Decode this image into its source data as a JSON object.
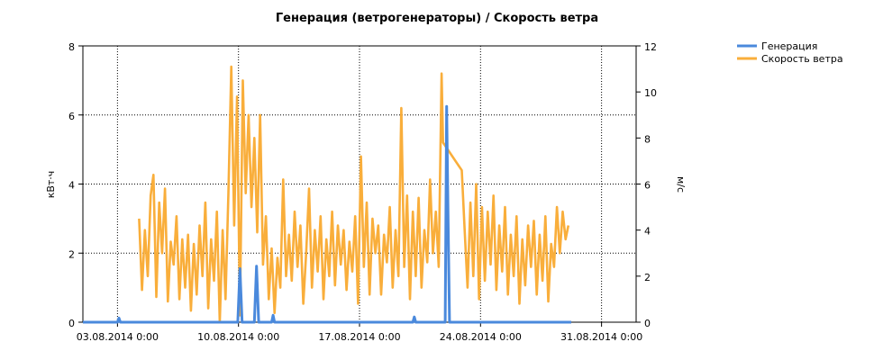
{
  "chart_data": {
    "type": "line",
    "title": "Генерация (ветрогенераторы) / Скорость ветра",
    "ylabel_left": "кВт·ч",
    "ylabel_right": "м/с",
    "ylim_left": [
      0,
      8
    ],
    "ylim_right": [
      0,
      12
    ],
    "yticks_left": [
      "0",
      "2",
      "4",
      "6",
      "8"
    ],
    "yticks_right": [
      "0",
      "2",
      "4",
      "6",
      "8",
      "10",
      "12"
    ],
    "x_range": [
      "2014-08-01T00:00",
      "2014-09-02T00:00"
    ],
    "x_ticks": [
      {
        "date": "2014-08-03T00:00",
        "label": "03.08.2014 0:00"
      },
      {
        "date": "2014-08-10T00:00",
        "label": "10.08.2014 0:00"
      },
      {
        "date": "2014-08-17T00:00",
        "label": "17.08.2014 0:00"
      },
      {
        "date": "2014-08-24T00:00",
        "label": "24.08.2014 0:00"
      },
      {
        "date": "2014-08-31T00:00",
        "label": "31.08.2014 0:00"
      }
    ],
    "grid": true,
    "legend_position": "top-right",
    "series": [
      {
        "name": "Генерация",
        "axis": "left",
        "color": "#4a89dc",
        "points": [
          [
            "2014-08-01T00:00",
            0
          ],
          [
            "2014-08-03T00:00",
            0
          ],
          [
            "2014-08-03T02:00",
            0.12
          ],
          [
            "2014-08-03T04:00",
            0
          ],
          [
            "2014-08-09T23:00",
            0
          ],
          [
            "2014-08-10T02:00",
            1.55
          ],
          [
            "2014-08-10T05:00",
            0
          ],
          [
            "2014-08-10T22:00",
            0
          ],
          [
            "2014-08-11T01:00",
            1.62
          ],
          [
            "2014-08-11T04:00",
            0
          ],
          [
            "2014-08-11T22:00",
            0
          ],
          [
            "2014-08-12T00:00",
            0.2
          ],
          [
            "2014-08-12T02:00",
            0
          ],
          [
            "2014-08-20T02:00",
            0
          ],
          [
            "2014-08-20T04:00",
            0.15
          ],
          [
            "2014-08-20T06:00",
            0
          ],
          [
            "2014-08-21T23:00",
            0
          ],
          [
            "2014-08-22T01:00",
            6.25
          ],
          [
            "2014-08-22T03:00",
            3.0
          ],
          [
            "2014-08-22T05:00",
            0
          ],
          [
            "2014-08-29T06:00",
            0
          ]
        ]
      },
      {
        "name": "Скорость ветра",
        "axis": "right",
        "color": "#f9ae3b",
        "points": [
          [
            "2014-08-04T06:00",
            4.5
          ],
          [
            "2014-08-04T10:00",
            1.4
          ],
          [
            "2014-08-04T14:00",
            4.0
          ],
          [
            "2014-08-04T18:00",
            2.0
          ],
          [
            "2014-08-04T22:00",
            5.5
          ],
          [
            "2014-08-05T02:00",
            6.4
          ],
          [
            "2014-08-05T06:00",
            1.1
          ],
          [
            "2014-08-05T10:00",
            5.2
          ],
          [
            "2014-08-05T14:00",
            3.0
          ],
          [
            "2014-08-05T18:00",
            5.8
          ],
          [
            "2014-08-05T22:00",
            0.9
          ],
          [
            "2014-08-06T02:00",
            3.5
          ],
          [
            "2014-08-06T06:00",
            2.5
          ],
          [
            "2014-08-06T10:00",
            4.6
          ],
          [
            "2014-08-06T14:00",
            1.0
          ],
          [
            "2014-08-06T18:00",
            3.6
          ],
          [
            "2014-08-06T22:00",
            1.5
          ],
          [
            "2014-08-07T02:00",
            3.8
          ],
          [
            "2014-08-07T06:00",
            0.5
          ],
          [
            "2014-08-07T10:00",
            3.4
          ],
          [
            "2014-08-07T14:00",
            1.2
          ],
          [
            "2014-08-07T18:00",
            4.2
          ],
          [
            "2014-08-07T22:00",
            2.0
          ],
          [
            "2014-08-08T02:00",
            5.2
          ],
          [
            "2014-08-08T06:00",
            0.6
          ],
          [
            "2014-08-08T10:00",
            3.6
          ],
          [
            "2014-08-08T14:00",
            1.8
          ],
          [
            "2014-08-08T18:00",
            4.8
          ],
          [
            "2014-08-08T22:00",
            0.0
          ],
          [
            "2014-08-09T02:00",
            4.0
          ],
          [
            "2014-08-09T06:00",
            1.0
          ],
          [
            "2014-08-09T10:00",
            5.6
          ],
          [
            "2014-08-09T14:00",
            11.1
          ],
          [
            "2014-08-09T18:00",
            4.2
          ],
          [
            "2014-08-09T22:00",
            9.8
          ],
          [
            "2014-08-10T02:00",
            0.3
          ],
          [
            "2014-08-10T06:00",
            10.5
          ],
          [
            "2014-08-10T10:00",
            5.6
          ],
          [
            "2014-08-10T14:00",
            9.0
          ],
          [
            "2014-08-10T18:00",
            5.0
          ],
          [
            "2014-08-10T22:00",
            8.0
          ],
          [
            "2014-08-11T02:00",
            3.9
          ],
          [
            "2014-08-11T06:00",
            9.0
          ],
          [
            "2014-08-11T10:00",
            2.5
          ],
          [
            "2014-08-11T14:00",
            4.6
          ],
          [
            "2014-08-11T18:00",
            1.0
          ],
          [
            "2014-08-11T22:00",
            3.2
          ],
          [
            "2014-08-12T02:00",
            0.4
          ],
          [
            "2014-08-12T06:00",
            2.8
          ],
          [
            "2014-08-12T10:00",
            1.5
          ],
          [
            "2014-08-12T14:00",
            6.2
          ],
          [
            "2014-08-12T18:00",
            2.0
          ],
          [
            "2014-08-12T22:00",
            3.8
          ],
          [
            "2014-08-13T02:00",
            1.8
          ],
          [
            "2014-08-13T06:00",
            4.8
          ],
          [
            "2014-08-13T10:00",
            2.4
          ],
          [
            "2014-08-13T14:00",
            4.2
          ],
          [
            "2014-08-13T18:00",
            0.8
          ],
          [
            "2014-08-13T22:00",
            3.0
          ],
          [
            "2014-08-14T02:00",
            5.8
          ],
          [
            "2014-08-14T06:00",
            1.5
          ],
          [
            "2014-08-14T10:00",
            4.0
          ],
          [
            "2014-08-14T14:00",
            2.2
          ],
          [
            "2014-08-14T18:00",
            4.6
          ],
          [
            "2014-08-14T22:00",
            1.0
          ],
          [
            "2014-08-15T02:00",
            3.6
          ],
          [
            "2014-08-15T06:00",
            2.0
          ],
          [
            "2014-08-15T10:00",
            4.8
          ],
          [
            "2014-08-15T14:00",
            1.6
          ],
          [
            "2014-08-15T18:00",
            4.2
          ],
          [
            "2014-08-15T22:00",
            2.5
          ],
          [
            "2014-08-16T02:00",
            4.0
          ],
          [
            "2014-08-16T06:00",
            1.4
          ],
          [
            "2014-08-16T10:00",
            3.5
          ],
          [
            "2014-08-16T14:00",
            2.2
          ],
          [
            "2014-08-16T18:00",
            4.6
          ],
          [
            "2014-08-16T22:00",
            0.8
          ],
          [
            "2014-08-17T02:00",
            7.2
          ],
          [
            "2014-08-17T06:00",
            2.4
          ],
          [
            "2014-08-17T10:00",
            5.2
          ],
          [
            "2014-08-17T14:00",
            1.2
          ],
          [
            "2014-08-17T18:00",
            4.5
          ],
          [
            "2014-08-17T22:00",
            3.0
          ],
          [
            "2014-08-18T02:00",
            4.2
          ],
          [
            "2014-08-18T06:00",
            1.2
          ],
          [
            "2014-08-18T10:00",
            3.8
          ],
          [
            "2014-08-18T14:00",
            2.6
          ],
          [
            "2014-08-18T18:00",
            5.0
          ],
          [
            "2014-08-18T22:00",
            1.5
          ],
          [
            "2014-08-19T02:00",
            4.0
          ],
          [
            "2014-08-19T06:00",
            2.0
          ],
          [
            "2014-08-19T10:00",
            9.3
          ],
          [
            "2014-08-19T14:00",
            2.4
          ],
          [
            "2014-08-19T18:00",
            5.5
          ],
          [
            "2014-08-19T22:00",
            1.0
          ],
          [
            "2014-08-20T02:00",
            4.8
          ],
          [
            "2014-08-20T06:00",
            2.0
          ],
          [
            "2014-08-20T10:00",
            5.4
          ],
          [
            "2014-08-20T14:00",
            1.5
          ],
          [
            "2014-08-20T18:00",
            4.0
          ],
          [
            "2014-08-20T22:00",
            2.6
          ],
          [
            "2014-08-21T02:00",
            6.2
          ],
          [
            "2014-08-21T06:00",
            3.0
          ],
          [
            "2014-08-21T10:00",
            4.8
          ],
          [
            "2014-08-21T14:00",
            2.4
          ],
          [
            "2014-08-21T18:00",
            10.8
          ],
          [
            "2014-08-21T20:00",
            7.8
          ],
          [
            "2014-08-22T22:00",
            6.6
          ],
          [
            "2014-08-23T02:00",
            4.0
          ],
          [
            "2014-08-23T06:00",
            1.5
          ],
          [
            "2014-08-23T10:00",
            5.2
          ],
          [
            "2014-08-23T14:00",
            2.0
          ],
          [
            "2014-08-23T18:00",
            6.0
          ],
          [
            "2014-08-23T22:00",
            1.0
          ],
          [
            "2014-08-24T02:00",
            5.0
          ],
          [
            "2014-08-24T06:00",
            1.8
          ],
          [
            "2014-08-24T10:00",
            4.8
          ],
          [
            "2014-08-24T14:00",
            2.5
          ],
          [
            "2014-08-24T18:00",
            5.5
          ],
          [
            "2014-08-24T22:00",
            1.4
          ],
          [
            "2014-08-25T02:00",
            4.2
          ],
          [
            "2014-08-25T06:00",
            2.2
          ],
          [
            "2014-08-25T10:00",
            5.0
          ],
          [
            "2014-08-25T14:00",
            1.2
          ],
          [
            "2014-08-25T18:00",
            3.8
          ],
          [
            "2014-08-25T22:00",
            2.0
          ],
          [
            "2014-08-26T02:00",
            4.6
          ],
          [
            "2014-08-26T06:00",
            0.8
          ],
          [
            "2014-08-26T10:00",
            3.6
          ],
          [
            "2014-08-26T14:00",
            1.6
          ],
          [
            "2014-08-26T18:00",
            4.2
          ],
          [
            "2014-08-26T22:00",
            2.4
          ],
          [
            "2014-08-27T02:00",
            4.4
          ],
          [
            "2014-08-27T06:00",
            1.2
          ],
          [
            "2014-08-27T10:00",
            3.8
          ],
          [
            "2014-08-27T14:00",
            1.8
          ],
          [
            "2014-08-27T18:00",
            4.6
          ],
          [
            "2014-08-27T22:00",
            0.9
          ],
          [
            "2014-08-28T02:00",
            3.4
          ],
          [
            "2014-08-28T06:00",
            2.4
          ],
          [
            "2014-08-28T10:00",
            5.0
          ],
          [
            "2014-08-28T14:00",
            3.0
          ],
          [
            "2014-08-28T18:00",
            4.8
          ],
          [
            "2014-08-28T22:00",
            3.6
          ],
          [
            "2014-08-29T02:00",
            4.2
          ]
        ]
      }
    ]
  }
}
